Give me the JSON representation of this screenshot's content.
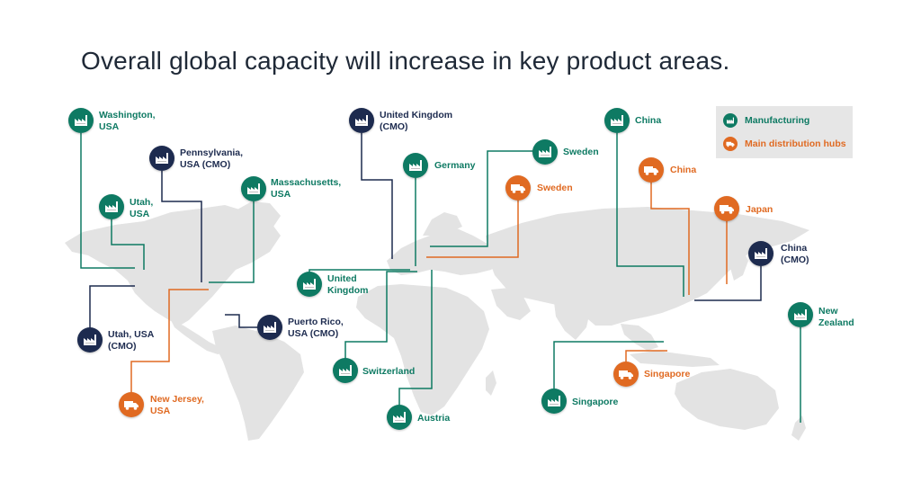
{
  "title": "Overall global capacity will increase in key product areas.",
  "colors": {
    "manufacturing": "#0e7a63",
    "cmo": "#1d2b4f",
    "distribution": "#e06a22",
    "land": "#e3e3e3"
  },
  "legend": {
    "manufacturing_label": "Manufacturing",
    "distribution_label": "Main distribution hubs",
    "manufacturing_icon": "factory-icon",
    "distribution_icon": "truck-icon"
  },
  "markers": [
    {
      "id": "washington",
      "lines": [
        "Washington,",
        "USA"
      ],
      "type": "manufacturing",
      "icon": "factory-icon"
    },
    {
      "id": "pennsylvania",
      "lines": [
        "Pennsylvania,",
        "USA (CMO)"
      ],
      "type": "cmo",
      "icon": "factory-icon"
    },
    {
      "id": "utah",
      "lines": [
        "Utah,",
        "USA"
      ],
      "type": "manufacturing",
      "icon": "factory-icon"
    },
    {
      "id": "massachusetts",
      "lines": [
        "Massachusetts,",
        "USA"
      ],
      "type": "manufacturing",
      "icon": "factory-icon"
    },
    {
      "id": "utah-cmo",
      "lines": [
        "Utah, USA",
        "(CMO)"
      ],
      "type": "cmo",
      "icon": "factory-icon"
    },
    {
      "id": "puerto-rico",
      "lines": [
        "Puerto Rico,",
        "USA (CMO)"
      ],
      "type": "cmo",
      "icon": "factory-icon"
    },
    {
      "id": "new-jersey",
      "lines": [
        "New Jersey,",
        "USA"
      ],
      "type": "distribution",
      "icon": "truck-icon"
    },
    {
      "id": "uk-cmo",
      "lines": [
        "United Kingdom",
        "(CMO)"
      ],
      "type": "cmo",
      "icon": "factory-icon"
    },
    {
      "id": "germany",
      "lines": [
        "Germany"
      ],
      "type": "manufacturing",
      "icon": "factory-icon"
    },
    {
      "id": "uk",
      "lines": [
        "United",
        "Kingdom"
      ],
      "type": "manufacturing",
      "icon": "factory-icon"
    },
    {
      "id": "switzerland",
      "lines": [
        "Switzerland"
      ],
      "type": "manufacturing",
      "icon": "factory-icon"
    },
    {
      "id": "austria",
      "lines": [
        "Austria"
      ],
      "type": "manufacturing",
      "icon": "factory-icon"
    },
    {
      "id": "sweden-mfg",
      "lines": [
        "Sweden"
      ],
      "type": "manufacturing",
      "icon": "factory-icon"
    },
    {
      "id": "sweden-hub",
      "lines": [
        "Sweden"
      ],
      "type": "distribution",
      "icon": "truck-icon"
    },
    {
      "id": "china-mfg",
      "lines": [
        "China"
      ],
      "type": "manufacturing",
      "icon": "factory-icon"
    },
    {
      "id": "china-hub",
      "lines": [
        "China"
      ],
      "type": "distribution",
      "icon": "truck-icon"
    },
    {
      "id": "japan",
      "lines": [
        "Japan"
      ],
      "type": "distribution",
      "icon": "truck-icon"
    },
    {
      "id": "china-cmo",
      "lines": [
        "China",
        "(CMO)"
      ],
      "type": "cmo",
      "icon": "factory-icon"
    },
    {
      "id": "new-zealand",
      "lines": [
        "New",
        "Zealand"
      ],
      "type": "manufacturing",
      "icon": "factory-icon"
    },
    {
      "id": "singapore-hub",
      "lines": [
        "Singapore"
      ],
      "type": "distribution",
      "icon": "truck-icon"
    },
    {
      "id": "singapore-mfg",
      "lines": [
        "Singapore"
      ],
      "type": "manufacturing",
      "icon": "factory-icon"
    }
  ]
}
